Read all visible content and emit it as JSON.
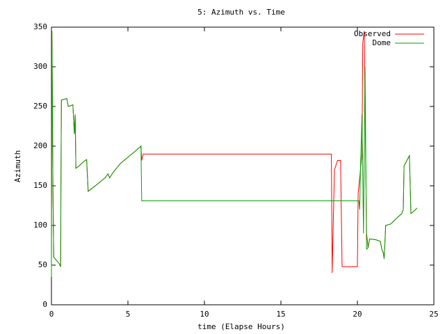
{
  "chart_data": {
    "type": "line",
    "title": "5: Azimuth vs. Time",
    "x_label": "time (Elapse Hours)",
    "y_label": "Azimuth",
    "xlim": [
      0,
      25
    ],
    "xticks": [
      0,
      5,
      10,
      15,
      20,
      25
    ],
    "ylim": [
      0,
      350
    ],
    "yticks": [
      0,
      50,
      100,
      150,
      200,
      250,
      300,
      350
    ],
    "grid": false,
    "legend": "top-right",
    "series": [
      {
        "name": "Observed",
        "color": "#ff0000",
        "x": [
          0,
          0.03,
          0.06,
          0.1,
          0.15,
          0.5,
          0.6,
          0.62,
          0.65,
          1.0,
          1.1,
          1.4,
          1.5,
          1.55,
          1.6,
          1.8,
          2.2,
          2.3,
          2.4,
          2.6,
          3.0,
          3.5,
          3.7,
          3.8,
          4.0,
          4.5,
          5.0,
          5.5,
          5.85,
          5.9,
          6.0,
          18.3,
          18.35,
          18.5,
          18.7,
          18.9,
          19.0,
          20.0,
          20.05,
          20.15,
          20.3,
          20.35,
          20.45,
          20.5,
          20.6,
          20.7,
          20.8,
          21.2,
          21.5,
          21.6,
          21.7,
          21.75,
          21.85,
          22.2,
          22.5,
          22.9,
          23.0,
          23.05,
          23.4,
          23.5,
          23.7,
          23.9
        ],
        "values": [
          100,
          345,
          270,
          140,
          60,
          52,
          48,
          150,
          258,
          260,
          250,
          252,
          215,
          240,
          172,
          175,
          182,
          183,
          143,
          146,
          152,
          160,
          165,
          160,
          166,
          178,
          186,
          194,
          200,
          182,
          190,
          190,
          40,
          170,
          182,
          182,
          48,
          48,
          140,
          160,
          190,
          330,
          345,
          250,
          90,
          72,
          83,
          82,
          80,
          70,
          65,
          58,
          100,
          102,
          108,
          115,
          120,
          175,
          188,
          115,
          118,
          122
        ]
      },
      {
        "name": "Dome",
        "color": "#00a000",
        "x": [
          0,
          0.03,
          0.06,
          0.1,
          0.15,
          0.5,
          0.6,
          0.62,
          0.65,
          1.0,
          1.1,
          1.4,
          1.5,
          1.55,
          1.6,
          1.8,
          2.2,
          2.3,
          2.4,
          2.6,
          3.0,
          3.5,
          3.7,
          3.8,
          4.0,
          4.5,
          5.0,
          5.5,
          5.85,
          5.9,
          20.1,
          20.15,
          20.2,
          20.3,
          20.4,
          20.5,
          20.6,
          20.7,
          20.8,
          21.2,
          21.5,
          21.6,
          21.7,
          21.75,
          21.85,
          22.2,
          22.5,
          22.9,
          23.0,
          23.05,
          23.4,
          23.5,
          23.7,
          23.9
        ],
        "values": [
          35,
          345,
          268,
          140,
          60,
          52,
          48,
          150,
          258,
          260,
          250,
          252,
          215,
          240,
          172,
          175,
          182,
          183,
          143,
          146,
          152,
          160,
          165,
          160,
          166,
          178,
          186,
          194,
          200,
          131,
          131,
          120,
          170,
          240,
          90,
          300,
          70,
          72,
          83,
          82,
          80,
          70,
          65,
          58,
          100,
          102,
          108,
          115,
          120,
          175,
          188,
          115,
          118,
          122
        ]
      }
    ]
  }
}
